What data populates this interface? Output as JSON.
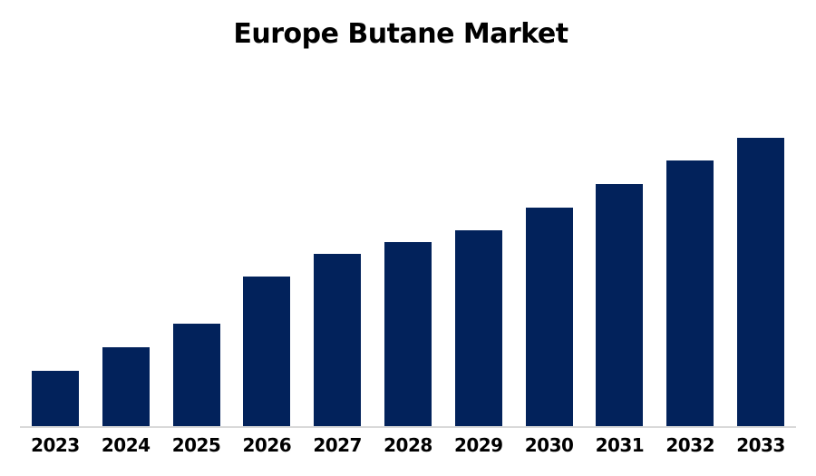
{
  "title": "Europe Butane Market",
  "chart_data": {
    "type": "bar",
    "title": "Europe Butane Market",
    "categories": [
      "2023",
      "2024",
      "2025",
      "2026",
      "2027",
      "2028",
      "2029",
      "2030",
      "2031",
      "2032",
      "2033"
    ],
    "values": [
      19.4,
      27.6,
      35.7,
      52.0,
      59.9,
      63.9,
      68.0,
      75.9,
      84.0,
      92.2,
      100.0
    ],
    "xlabel": "",
    "ylabel": "",
    "ylim": [
      0,
      100
    ],
    "grid": "off",
    "legend": "none",
    "y_axis_labels_shown": false,
    "bar_color": "#02225B",
    "axis_line_color": "#D9D9D9",
    "label_color": "#000000",
    "title_color": "#000000"
  }
}
